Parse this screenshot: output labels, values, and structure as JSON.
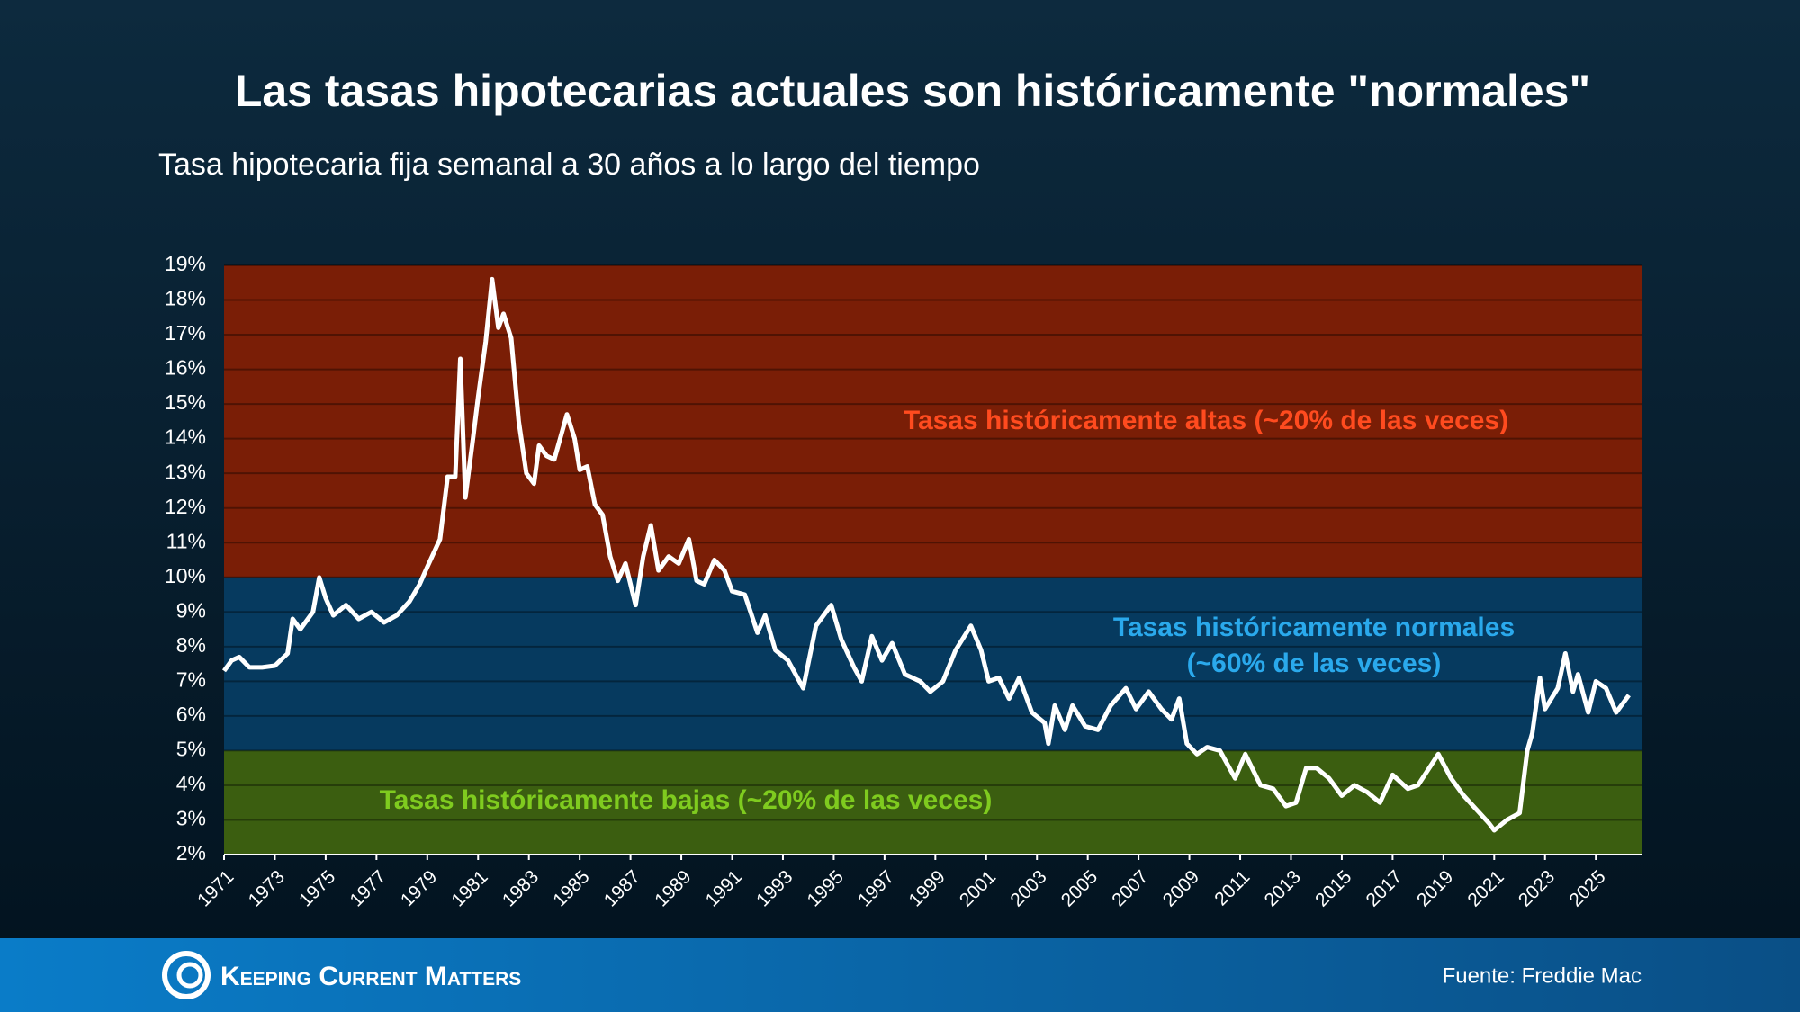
{
  "chart_data": {
    "type": "line",
    "title": "Las tasas hipotecarias actuales son históricamente \"normales\"",
    "subtitle": "Tasa hipotecaria fija semanal a 30 años a lo largo del tiempo",
    "xlim": [
      1971,
      2026.8
    ],
    "xticks": [
      1971,
      1973,
      1975,
      1977,
      1979,
      1981,
      1983,
      1985,
      1987,
      1989,
      1991,
      1993,
      1995,
      1997,
      1999,
      2001,
      2003,
      2005,
      2007,
      2009,
      2011,
      2013,
      2015,
      2017,
      2019,
      2021,
      2023,
      2025
    ],
    "ylim": [
      2,
      19
    ],
    "yticks": [
      {
        "value": 2,
        "label": "2%"
      },
      {
        "value": 3,
        "label": "3%"
      },
      {
        "value": 4,
        "label": "4%"
      },
      {
        "value": 5,
        "label": "5%"
      },
      {
        "value": 6,
        "label": "6%"
      },
      {
        "value": 7,
        "label": "7%"
      },
      {
        "value": 8,
        "label": "8%"
      },
      {
        "value": 9,
        "label": "9%"
      },
      {
        "value": 10,
        "label": "10%"
      },
      {
        "value": 11,
        "label": "11%"
      },
      {
        "value": 12,
        "label": "12%"
      },
      {
        "value": 13,
        "label": "13%"
      },
      {
        "value": 14,
        "label": "14%"
      },
      {
        "value": 15,
        "label": "15%"
      },
      {
        "value": 16,
        "label": "16%"
      },
      {
        "value": 17,
        "label": "17%"
      },
      {
        "value": 18,
        "label": "18%"
      },
      {
        "value": 19,
        "label": "19%"
      }
    ],
    "grid": true,
    "bands": [
      {
        "from": 10,
        "to": 19,
        "color": "#7a1e06",
        "label_color": "#ff4b1f",
        "label": [
          "Tasas históricamente altas (~20% de las veces)"
        ]
      },
      {
        "from": 5,
        "to": 10,
        "color": "#063a5f",
        "label_color": "#2aa9ec",
        "label": [
          "Tasas históricamente normales",
          "(~60% de las veces)"
        ]
      },
      {
        "from": 2,
        "to": 5,
        "color": "#3b5e10",
        "label_color": "#7fcb1f",
        "label": [
          "Tasas históricamente bajas (~20% de las veces)"
        ]
      }
    ],
    "series": [
      {
        "name": "Tasa hipotecaria fija a 30 años",
        "color": "#ffffff",
        "x": [
          1971.0,
          1971.3,
          1971.6,
          1972.0,
          1972.5,
          1973.0,
          1973.5,
          1973.7,
          1974.0,
          1974.5,
          1974.75,
          1975.0,
          1975.3,
          1975.8,
          1976.3,
          1976.8,
          1977.3,
          1977.8,
          1978.3,
          1978.7,
          1979.0,
          1979.5,
          1979.8,
          1980.1,
          1980.3,
          1980.5,
          1980.8,
          1981.0,
          1981.3,
          1981.55,
          1981.8,
          1982.0,
          1982.3,
          1982.6,
          1982.9,
          1983.2,
          1983.4,
          1983.7,
          1984.0,
          1984.5,
          1984.8,
          1985.0,
          1985.3,
          1985.6,
          1985.9,
          1986.2,
          1986.5,
          1986.8,
          1987.2,
          1987.5,
          1987.8,
          1988.1,
          1988.5,
          1988.9,
          1989.3,
          1989.6,
          1989.9,
          1990.3,
          1990.7,
          1991.0,
          1991.5,
          1992.0,
          1992.3,
          1992.7,
          1993.2,
          1993.8,
          1994.3,
          1994.9,
          1995.3,
          1995.8,
          1996.1,
          1996.5,
          1996.9,
          1997.3,
          1997.8,
          1998.4,
          1998.8,
          1999.3,
          1999.8,
          2000.4,
          2000.8,
          2001.1,
          2001.5,
          2001.9,
          2002.3,
          2002.8,
          2003.3,
          2003.45,
          2003.7,
          2004.1,
          2004.4,
          2004.9,
          2005.4,
          2005.9,
          2006.5,
          2006.9,
          2007.4,
          2007.9,
          2008.3,
          2008.6,
          2008.9,
          2009.3,
          2009.7,
          2010.2,
          2010.8,
          2011.2,
          2011.8,
          2012.3,
          2012.8,
          2013.2,
          2013.6,
          2014.0,
          2014.5,
          2015.0,
          2015.5,
          2016.0,
          2016.5,
          2017.0,
          2017.6,
          2018.0,
          2018.8,
          2019.3,
          2019.8,
          2020.3,
          2020.8,
          2021.0,
          2021.5,
          2022.0,
          2022.3,
          2022.5,
          2022.8,
          2023.0,
          2023.5,
          2023.8,
          2024.1,
          2024.3,
          2024.7,
          2025.0,
          2025.4,
          2025.8,
          2026.3
        ],
        "values": [
          7.3,
          7.6,
          7.7,
          7.4,
          7.4,
          7.45,
          7.8,
          8.8,
          8.5,
          9.0,
          10.0,
          9.4,
          8.9,
          9.2,
          8.8,
          9.0,
          8.7,
          8.9,
          9.3,
          9.8,
          10.3,
          11.1,
          12.9,
          12.9,
          16.3,
          12.3,
          14.0,
          15.2,
          16.8,
          18.6,
          17.2,
          17.6,
          16.9,
          14.5,
          13.0,
          12.7,
          13.8,
          13.5,
          13.4,
          14.7,
          14.0,
          13.1,
          13.2,
          12.1,
          11.8,
          10.6,
          9.9,
          10.4,
          9.2,
          10.6,
          11.5,
          10.2,
          10.6,
          10.4,
          11.1,
          9.9,
          9.8,
          10.5,
          10.2,
          9.6,
          9.5,
          8.4,
          8.9,
          7.9,
          7.6,
          6.8,
          8.6,
          9.2,
          8.2,
          7.4,
          7.0,
          8.3,
          7.6,
          8.1,
          7.2,
          7.0,
          6.7,
          7.0,
          7.9,
          8.6,
          7.9,
          7.0,
          7.1,
          6.5,
          7.1,
          6.1,
          5.8,
          5.2,
          6.3,
          5.6,
          6.3,
          5.7,
          5.6,
          6.3,
          6.8,
          6.2,
          6.7,
          6.2,
          5.9,
          6.5,
          5.2,
          4.9,
          5.1,
          5.0,
          4.2,
          4.9,
          4.0,
          3.9,
          3.4,
          3.5,
          4.5,
          4.5,
          4.2,
          3.7,
          4.0,
          3.8,
          3.5,
          4.3,
          3.9,
          4.0,
          4.9,
          4.2,
          3.7,
          3.3,
          2.9,
          2.7,
          3.0,
          3.2,
          5.0,
          5.5,
          7.1,
          6.2,
          6.8,
          7.8,
          6.7,
          7.2,
          6.1,
          7.0,
          6.8,
          6.1,
          6.6
        ]
      }
    ],
    "brand": "Keeping Current Matters",
    "source": "Fuente: Freddie Mac"
  }
}
